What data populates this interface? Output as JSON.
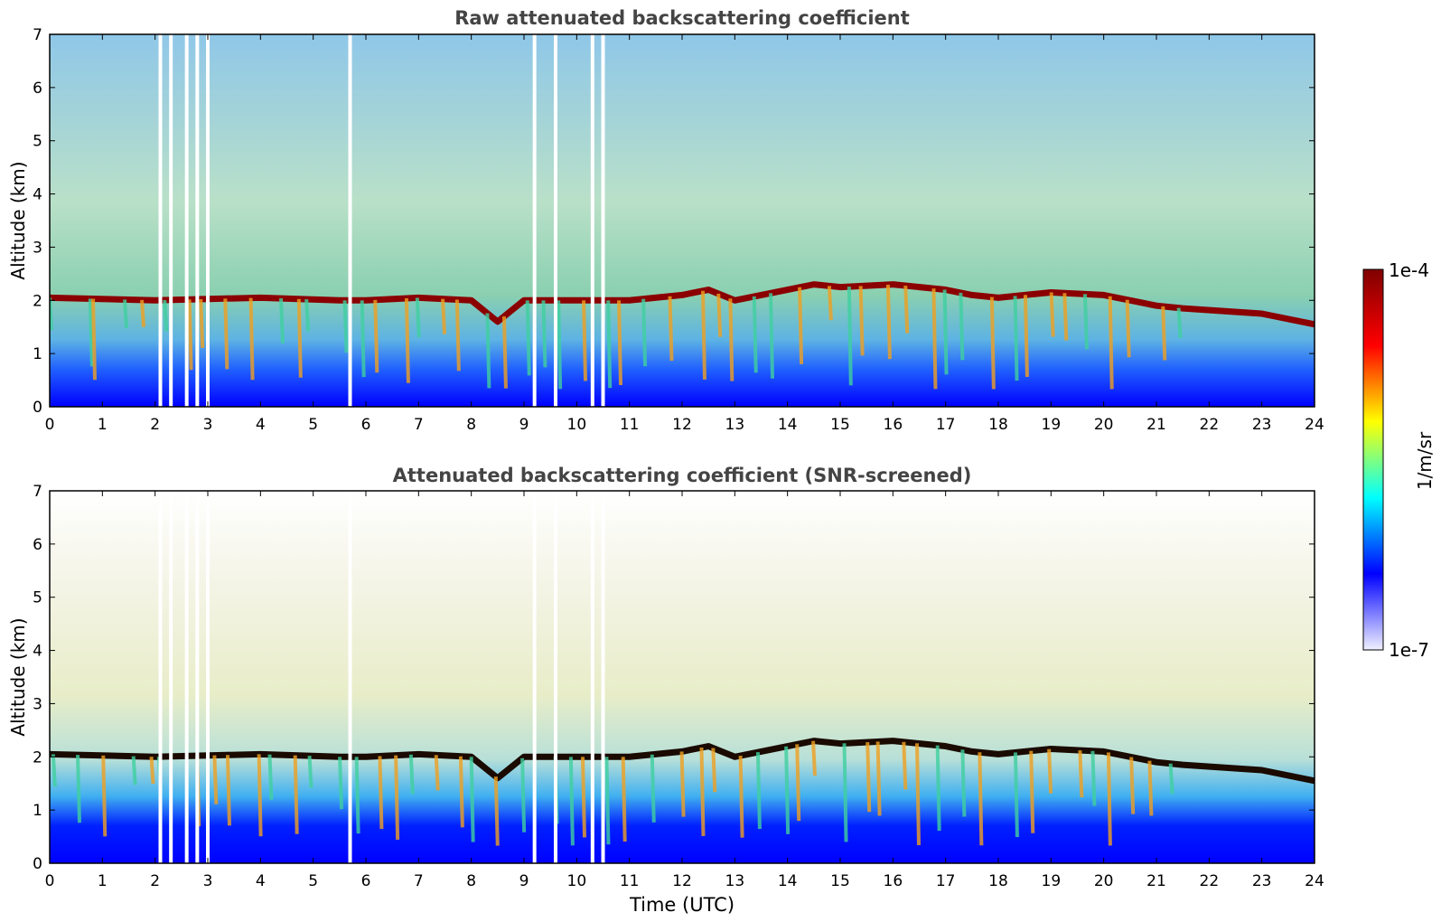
{
  "colors": {
    "cmap": [
      "#f0f0ff",
      "#0000ff",
      "#00ffff",
      "#ffff00",
      "#ff0000",
      "#800000"
    ],
    "title": "#444444",
    "axis": "#000000"
  },
  "colorbar": {
    "label": "1/m/sr",
    "max_label": "1e-4",
    "min_label": "1e-7",
    "scale": "log"
  },
  "chart_data": [
    {
      "type": "heatmap",
      "title": "Raw attenuated backscattering coefficient",
      "xlabel": "",
      "ylabel": "Altitude (km)",
      "xlim": [
        0,
        24
      ],
      "ylim": [
        0,
        7
      ],
      "x_ticks": [
        "0",
        "1",
        "2",
        "3",
        "4",
        "5",
        "6",
        "7",
        "8",
        "9",
        "10",
        "11",
        "12",
        "13",
        "14",
        "15",
        "16",
        "17",
        "18",
        "19",
        "20",
        "21",
        "22",
        "23",
        "24"
      ],
      "y_ticks": [
        "0",
        "1",
        "2",
        "3",
        "4",
        "5",
        "6",
        "7"
      ],
      "grid": false,
      "cloud_layer_altitude_km": {
        "time": [
          0,
          2,
          4,
          5.5,
          6,
          7,
          8,
          8.5,
          9,
          10,
          11,
          12,
          12.5,
          13,
          14,
          14.5,
          15,
          16,
          17,
          17.5,
          18,
          19,
          20,
          21,
          21.5,
          23,
          24
        ],
        "altitude": [
          2.05,
          2.0,
          2.05,
          2.0,
          2.0,
          2.05,
          2.0,
          1.6,
          2.0,
          2.0,
          2.0,
          2.1,
          2.2,
          2.0,
          2.2,
          2.3,
          2.25,
          2.3,
          2.2,
          2.1,
          2.05,
          2.15,
          2.1,
          1.9,
          1.85,
          1.75,
          1.55
        ]
      },
      "data_gaps_utc": [
        2.1,
        2.3,
        2.6,
        2.8,
        3.0,
        5.7,
        9.2,
        9.6,
        10.3,
        10.5
      ]
    },
    {
      "type": "heatmap",
      "title": "Attenuated backscattering coefficient (SNR-screened)",
      "xlabel": "Time (UTC)",
      "ylabel": "Altitude (km)",
      "xlim": [
        0,
        24
      ],
      "ylim": [
        0,
        7
      ],
      "x_ticks": [
        "0",
        "1",
        "2",
        "3",
        "4",
        "5",
        "6",
        "7",
        "8",
        "9",
        "10",
        "11",
        "12",
        "13",
        "14",
        "15",
        "16",
        "17",
        "18",
        "19",
        "20",
        "21",
        "22",
        "23",
        "24"
      ],
      "y_ticks": [
        "0",
        "1",
        "2",
        "3",
        "4",
        "5",
        "6",
        "7"
      ],
      "grid": false,
      "cloud_layer_altitude_km": {
        "time": [
          0,
          2,
          4,
          5.5,
          6,
          7,
          8,
          8.5,
          9,
          10,
          11,
          12,
          12.5,
          13,
          14,
          14.5,
          15,
          16,
          17,
          17.5,
          18,
          19,
          20,
          21,
          21.5,
          23,
          24
        ],
        "altitude": [
          2.05,
          2.0,
          2.05,
          2.0,
          2.0,
          2.05,
          2.0,
          1.6,
          2.0,
          2.0,
          2.0,
          2.1,
          2.2,
          2.0,
          2.2,
          2.3,
          2.25,
          2.3,
          2.2,
          2.1,
          2.05,
          2.15,
          2.1,
          1.9,
          1.85,
          1.75,
          1.55
        ]
      },
      "data_gaps_utc": [
        2.1,
        2.3,
        2.6,
        2.8,
        3.0,
        5.7,
        9.2,
        9.6,
        10.3,
        10.5
      ]
    }
  ]
}
